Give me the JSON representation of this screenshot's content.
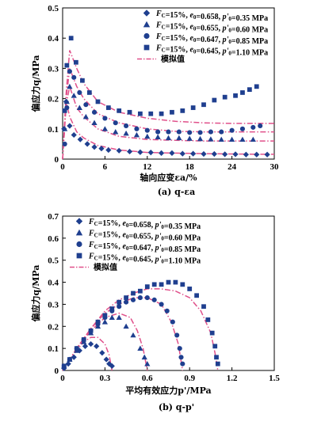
{
  "colors": {
    "marker": "#1f3f8f",
    "sim": "#e0508a",
    "axis": "#000000"
  },
  "legend": [
    {
      "marker": "diamond",
      "label": "F_C=15%, e_0=0.658, p'_0=0.35 MPa"
    },
    {
      "marker": "triangle",
      "label": "F_C=15%, e_0=0.655, p'_0=0.60 MPa"
    },
    {
      "marker": "circle",
      "label": "F_C=15%, e_0=0.647, p'_0=0.85 MPa"
    },
    {
      "marker": "square",
      "label": "F_C=15%, e_0=0.645, p'_0=1.10 MPa"
    },
    {
      "marker": "dashdot",
      "label": "模拟值"
    }
  ],
  "chart_data": [
    {
      "type": "scatter",
      "caption": "(a) q-εa",
      "xlabel": "轴向应变εa/%",
      "ylabel": "偏应力q/MPa",
      "xlim": [
        0,
        30
      ],
      "ylim": [
        0,
        0.5
      ],
      "xticks": [
        0,
        6,
        12,
        18,
        24,
        30
      ],
      "yticks": [
        0,
        0.1,
        0.2,
        0.3,
        0.4,
        0.5
      ],
      "series": [
        {
          "name": "F_C=15%, e_0=0.658, p'_0=0.35 MPa",
          "marker": "diamond",
          "x": [
            0.2,
            0.5,
            1.0,
            1.6,
            2.5,
            3.5,
            4.5,
            5.5,
            6.5,
            8,
            9.5,
            11,
            12.5,
            14,
            15.5,
            17,
            18.5,
            20,
            21.5,
            23,
            24.5,
            26,
            27.5,
            29
          ],
          "y": [
            0.1,
            0.19,
            0.11,
            0.08,
            0.065,
            0.05,
            0.04,
            0.035,
            0.03,
            0.028,
            0.025,
            0.023,
            0.022,
            0.02,
            0.02,
            0.018,
            0.018,
            0.017,
            0.017,
            0.016,
            0.016,
            0.015,
            0.015,
            0.015
          ]
        },
        {
          "name": "F_C=15%, e_0=0.655, p'_0=0.60 MPa",
          "marker": "triangle",
          "x": [
            0.3,
            0.6,
            1.0,
            1.6,
            2.4,
            3.3,
            4.5,
            6,
            7.5,
            9,
            10.5,
            12,
            13.5,
            15,
            16.5,
            18,
            19.5,
            21,
            22.5,
            24,
            25.5,
            27
          ],
          "y": [
            0.1,
            0.19,
            0.24,
            0.21,
            0.17,
            0.14,
            0.12,
            0.1,
            0.09,
            0.085,
            0.08,
            0.075,
            0.073,
            0.07,
            0.07,
            0.068,
            0.067,
            0.066,
            0.065,
            0.065,
            0.065,
            0.065
          ]
        },
        {
          "name": "F_C=15%, e_0=0.647, p'_0=0.85 MPa",
          "marker": "circle",
          "x": [
            0.3,
            0.6,
            1.0,
            1.6,
            2.4,
            3.3,
            4.5,
            6,
            7.5,
            9,
            10.5,
            12,
            13.5,
            15,
            16.5,
            18,
            19.5,
            21,
            22.5,
            24,
            25.5,
            27,
            28
          ],
          "y": [
            0.05,
            0.17,
            0.29,
            0.27,
            0.22,
            0.18,
            0.155,
            0.135,
            0.12,
            0.11,
            0.1,
            0.095,
            0.09,
            0.09,
            0.09,
            0.088,
            0.088,
            0.09,
            0.09,
            0.095,
            0.1,
            0.105,
            0.11
          ]
        },
        {
          "name": "F_C=15%, e_0=0.645, p'_0=1.10 MPa",
          "marker": "square",
          "x": [
            0.3,
            0.6,
            1.2,
            1.9,
            2.8,
            3.8,
            5,
            6.5,
            8,
            9.5,
            11,
            12.5,
            14,
            15.5,
            17,
            18.5,
            20,
            21.5,
            23,
            24.5,
            25.5,
            26.5,
            27.5
          ],
          "y": [
            0.16,
            0.31,
            0.4,
            0.32,
            0.26,
            0.22,
            0.19,
            0.17,
            0.16,
            0.155,
            0.15,
            0.15,
            0.15,
            0.155,
            0.16,
            0.17,
            0.18,
            0.195,
            0.205,
            0.21,
            0.22,
            0.23,
            0.24
          ]
        },
        {
          "name": "模拟值",
          "marker": "dashdot",
          "lines": [
            {
              "x": [
                0,
                0.5,
                1,
                2,
                3,
                5,
                8,
                12,
                16,
                20,
                24,
                28,
                30
              ],
              "y": [
                0,
                0.19,
                0.14,
                0.09,
                0.07,
                0.045,
                0.03,
                0.022,
                0.02,
                0.018,
                0.017,
                0.016,
                0.016
              ]
            },
            {
              "x": [
                0,
                0.5,
                1,
                2,
                3,
                5,
                8,
                12,
                16,
                20,
                24,
                28,
                30
              ],
              "y": [
                0,
                0.18,
                0.24,
                0.17,
                0.14,
                0.1,
                0.075,
                0.065,
                0.062,
                0.06,
                0.06,
                0.06,
                0.06
              ]
            },
            {
              "x": [
                0,
                0.5,
                1,
                2,
                3,
                5,
                8,
                12,
                16,
                20,
                24,
                28,
                30
              ],
              "y": [
                0,
                0.2,
                0.3,
                0.24,
                0.2,
                0.15,
                0.12,
                0.1,
                0.092,
                0.09,
                0.09,
                0.09,
                0.09
              ]
            },
            {
              "x": [
                0,
                0.5,
                1,
                2,
                3,
                5,
                8,
                12,
                16,
                20,
                24,
                28,
                30
              ],
              "y": [
                0,
                0.22,
                0.36,
                0.3,
                0.25,
                0.19,
                0.155,
                0.135,
                0.125,
                0.12,
                0.118,
                0.118,
                0.118
              ]
            }
          ]
        }
      ]
    },
    {
      "type": "scatter",
      "caption": "(b) q-p'",
      "xlabel": "平均有效应力p'/MPa",
      "ylabel": "偏应力q/MPa",
      "xlim": [
        0,
        1.5
      ],
      "ylim": [
        0,
        0.7
      ],
      "xticks": [
        0,
        0.3,
        0.6,
        0.9,
        1.2,
        1.5
      ],
      "yticks": [
        0,
        0.1,
        0.2,
        0.3,
        0.4,
        0.5,
        0.6,
        0.7
      ],
      "series": [
        {
          "name": "F_C=15%, e_0=0.658, p'_0=0.35 MPa",
          "marker": "diamond",
          "x": [
            0.01,
            0.04,
            0.08,
            0.12,
            0.16,
            0.2,
            0.24,
            0.28,
            0.31,
            0.33,
            0.35
          ],
          "y": [
            0.01,
            0.03,
            0.06,
            0.09,
            0.11,
            0.12,
            0.11,
            0.08,
            0.05,
            0.03,
            0.02
          ]
        },
        {
          "name": "F_C=15%, e_0=0.655, p'_0=0.60 MPa",
          "marker": "triangle",
          "x": [
            0.01,
            0.05,
            0.1,
            0.15,
            0.2,
            0.25,
            0.3,
            0.35,
            0.4,
            0.45,
            0.5,
            0.55,
            0.58,
            0.6
          ],
          "y": [
            0.02,
            0.05,
            0.09,
            0.13,
            0.17,
            0.2,
            0.22,
            0.24,
            0.24,
            0.2,
            0.16,
            0.1,
            0.06,
            0.03
          ]
        },
        {
          "name": "F_C=15%, e_0=0.647, p'_0=0.85 MPa",
          "marker": "circle",
          "x": [
            0.01,
            0.05,
            0.1,
            0.15,
            0.2,
            0.25,
            0.3,
            0.35,
            0.4,
            0.45,
            0.5,
            0.55,
            0.6,
            0.65,
            0.7,
            0.74,
            0.78,
            0.81,
            0.83,
            0.84,
            0.85
          ],
          "y": [
            0.02,
            0.05,
            0.1,
            0.14,
            0.18,
            0.21,
            0.24,
            0.27,
            0.29,
            0.31,
            0.32,
            0.33,
            0.33,
            0.32,
            0.3,
            0.27,
            0.22,
            0.16,
            0.1,
            0.06,
            0.03
          ]
        },
        {
          "name": "F_C=15%, e_0=0.645, p'_0=1.10 MPa",
          "marker": "square",
          "x": [
            0.01,
            0.05,
            0.1,
            0.15,
            0.2,
            0.25,
            0.3,
            0.35,
            0.4,
            0.45,
            0.5,
            0.55,
            0.6,
            0.65,
            0.7,
            0.75,
            0.8,
            0.85,
            0.9,
            0.95,
            1.0,
            1.03,
            1.06,
            1.08,
            1.09,
            1.1
          ],
          "y": [
            0.02,
            0.05,
            0.1,
            0.14,
            0.18,
            0.22,
            0.25,
            0.28,
            0.31,
            0.33,
            0.35,
            0.36,
            0.38,
            0.39,
            0.39,
            0.4,
            0.4,
            0.39,
            0.37,
            0.34,
            0.29,
            0.23,
            0.17,
            0.11,
            0.06,
            0.03
          ]
        },
        {
          "name": "模拟值",
          "marker": "dashdot",
          "lines": [
            {
              "x": [
                0,
                0.05,
                0.1,
                0.15,
                0.2,
                0.25,
                0.3,
                0.33,
                0.35
              ],
              "y": [
                0,
                0.05,
                0.09,
                0.13,
                0.15,
                0.15,
                0.12,
                0.07,
                0
              ]
            },
            {
              "x": [
                0,
                0.1,
                0.2,
                0.3,
                0.4,
                0.48,
                0.53,
                0.57,
                0.6
              ],
              "y": [
                0,
                0.1,
                0.18,
                0.24,
                0.26,
                0.24,
                0.18,
                0.1,
                0
              ]
            },
            {
              "x": [
                0,
                0.1,
                0.2,
                0.3,
                0.4,
                0.5,
                0.6,
                0.7,
                0.77,
                0.82,
                0.85
              ],
              "y": [
                0,
                0.1,
                0.19,
                0.26,
                0.3,
                0.33,
                0.33,
                0.3,
                0.22,
                0.12,
                0
              ]
            },
            {
              "x": [
                0,
                0.1,
                0.2,
                0.3,
                0.4,
                0.5,
                0.6,
                0.7,
                0.8,
                0.9,
                0.98,
                1.05,
                1.08,
                1.1
              ],
              "y": [
                0,
                0.1,
                0.19,
                0.27,
                0.32,
                0.35,
                0.37,
                0.37,
                0.36,
                0.33,
                0.27,
                0.17,
                0.08,
                0
              ]
            }
          ]
        }
      ]
    }
  ]
}
